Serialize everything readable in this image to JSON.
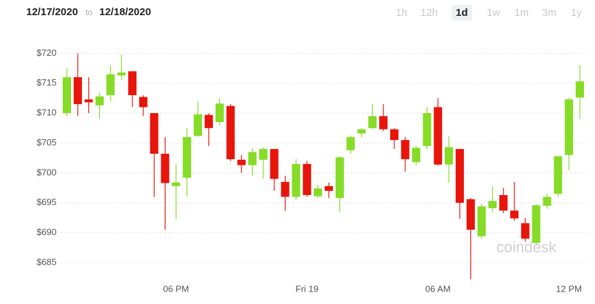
{
  "header": {
    "start_date": "12/17/2020",
    "separator": "to",
    "end_date": "12/18/2020",
    "ranges": [
      "1h",
      "12h",
      "1d",
      "1w",
      "1m",
      "3m",
      "1y"
    ],
    "selected_range": "1d"
  },
  "chart_data": {
    "type": "candlestick",
    "watermark": "coindesk",
    "categories": [
      null,
      null,
      null,
      null,
      null,
      null,
      null,
      null,
      null,
      null,
      "06 PM",
      null,
      null,
      null,
      null,
      null,
      null,
      null,
      null,
      null,
      null,
      null,
      "Fri 19",
      null,
      null,
      null,
      null,
      null,
      null,
      null,
      null,
      null,
      null,
      null,
      "06 AM",
      null,
      null,
      null,
      null,
      null,
      null,
      null,
      null,
      null,
      null,
      null,
      "12 PM",
      null
    ],
    "open": [
      710,
      716,
      712.3,
      711.3,
      713,
      716.3,
      717,
      712.7,
      710,
      703.2,
      697.8,
      699.2,
      706.2,
      709.7,
      708.5,
      711.2,
      702.2,
      701.3,
      702.2,
      704,
      698.5,
      696,
      701.5,
      696.1,
      697.8,
      695.8,
      703.8,
      706.6,
      707.5,
      709.5,
      707.3,
      705.5,
      701.8,
      704.5,
      711,
      701.4,
      704,
      695.6,
      689.4,
      694.1,
      696.3,
      693.7,
      691.6,
      688.3,
      694.5,
      696.5,
      703,
      712.6
    ],
    "high": [
      717.5,
      720,
      716,
      713.5,
      718,
      719.8,
      717,
      713,
      710,
      706,
      701.5,
      707.5,
      712,
      710,
      712.5,
      711.5,
      703,
      704.2,
      704.3,
      704,
      699.5,
      702.3,
      702,
      698,
      698.4,
      702.8,
      706.2,
      707.5,
      711.5,
      711.5,
      707.5,
      706,
      704.5,
      711,
      712.5,
      706.2,
      704,
      695.8,
      694.8,
      697.8,
      697.5,
      698.5,
      692.5,
      694.8,
      696.5,
      702.8,
      712.6,
      718
    ],
    "low": [
      709.5,
      709.5,
      710,
      709,
      712,
      715.5,
      711,
      709.5,
      696,
      690.5,
      692.3,
      696,
      706,
      704.5,
      708,
      702,
      700,
      699.5,
      699,
      697,
      693.7,
      695.5,
      696,
      695.8,
      695.8,
      693.4,
      703.2,
      706,
      707.3,
      707,
      704,
      700.2,
      701.3,
      704,
      701.2,
      698.3,
      692.3,
      682.2,
      689,
      693.5,
      693.3,
      692,
      688.5,
      688,
      694,
      696,
      700.5,
      709
    ],
    "close": [
      716,
      711.5,
      711.8,
      712.8,
      716.5,
      716.8,
      713,
      711,
      703.2,
      698.3,
      698.4,
      706,
      709.8,
      707.5,
      711.6,
      702.3,
      701.3,
      703.5,
      704,
      699,
      696,
      701.5,
      696.3,
      697.4,
      697,
      702.6,
      706,
      707.3,
      709.5,
      707.3,
      705.5,
      702.3,
      704.2,
      710,
      701.4,
      704.3,
      695,
      690.5,
      694.4,
      695.3,
      693.7,
      692.4,
      689,
      694.6,
      696,
      702.8,
      712.3,
      715.3
    ],
    "up_color": "#86dc26",
    "down_color": "#e8150b",
    "ylim": [
      682,
      722
    ],
    "yticks": [
      {
        "value": 685,
        "label": "$685"
      },
      {
        "value": 690,
        "label": "$690"
      },
      {
        "value": 695,
        "label": "$695"
      },
      {
        "value": 700,
        "label": "$700"
      },
      {
        "value": 705,
        "label": "$705"
      },
      {
        "value": 710,
        "label": "$710"
      },
      {
        "value": 715,
        "label": "$715"
      },
      {
        "value": 720,
        "label": "$720"
      }
    ],
    "grid": true
  }
}
